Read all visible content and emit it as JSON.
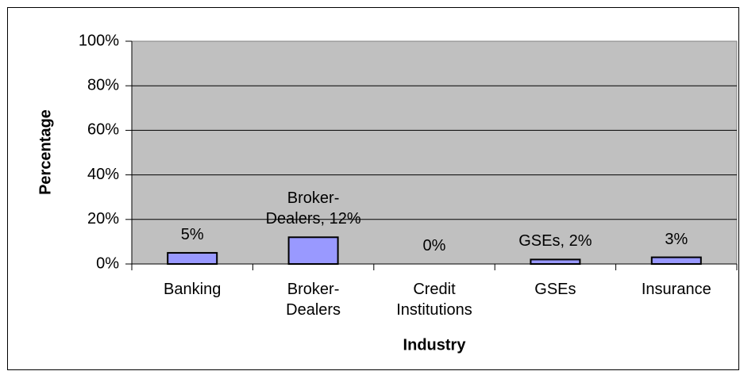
{
  "chart_data": {
    "type": "bar",
    "categories": [
      "Banking",
      "Broker-Dealers",
      "Credit Institutions",
      "GSEs",
      "Insurance"
    ],
    "values": [
      5,
      12,
      0,
      2,
      3
    ],
    "value_labels": [
      "5%",
      "Broker-Dealers, 12%",
      "0%",
      "GSEs, 2%",
      "3%"
    ],
    "color": "#9999ff",
    "ylim": [
      0,
      100
    ],
    "yticks": [
      {
        "value": 0,
        "label": "0%"
      },
      {
        "value": 20,
        "label": "20%"
      },
      {
        "value": 40,
        "label": "40%"
      },
      {
        "value": 60,
        "label": "60%"
      },
      {
        "value": 80,
        "label": "80%"
      },
      {
        "value": 100,
        "label": "100%"
      }
    ],
    "grid": true,
    "xlabel": "Industry",
    "ylabel": "Percentage"
  }
}
